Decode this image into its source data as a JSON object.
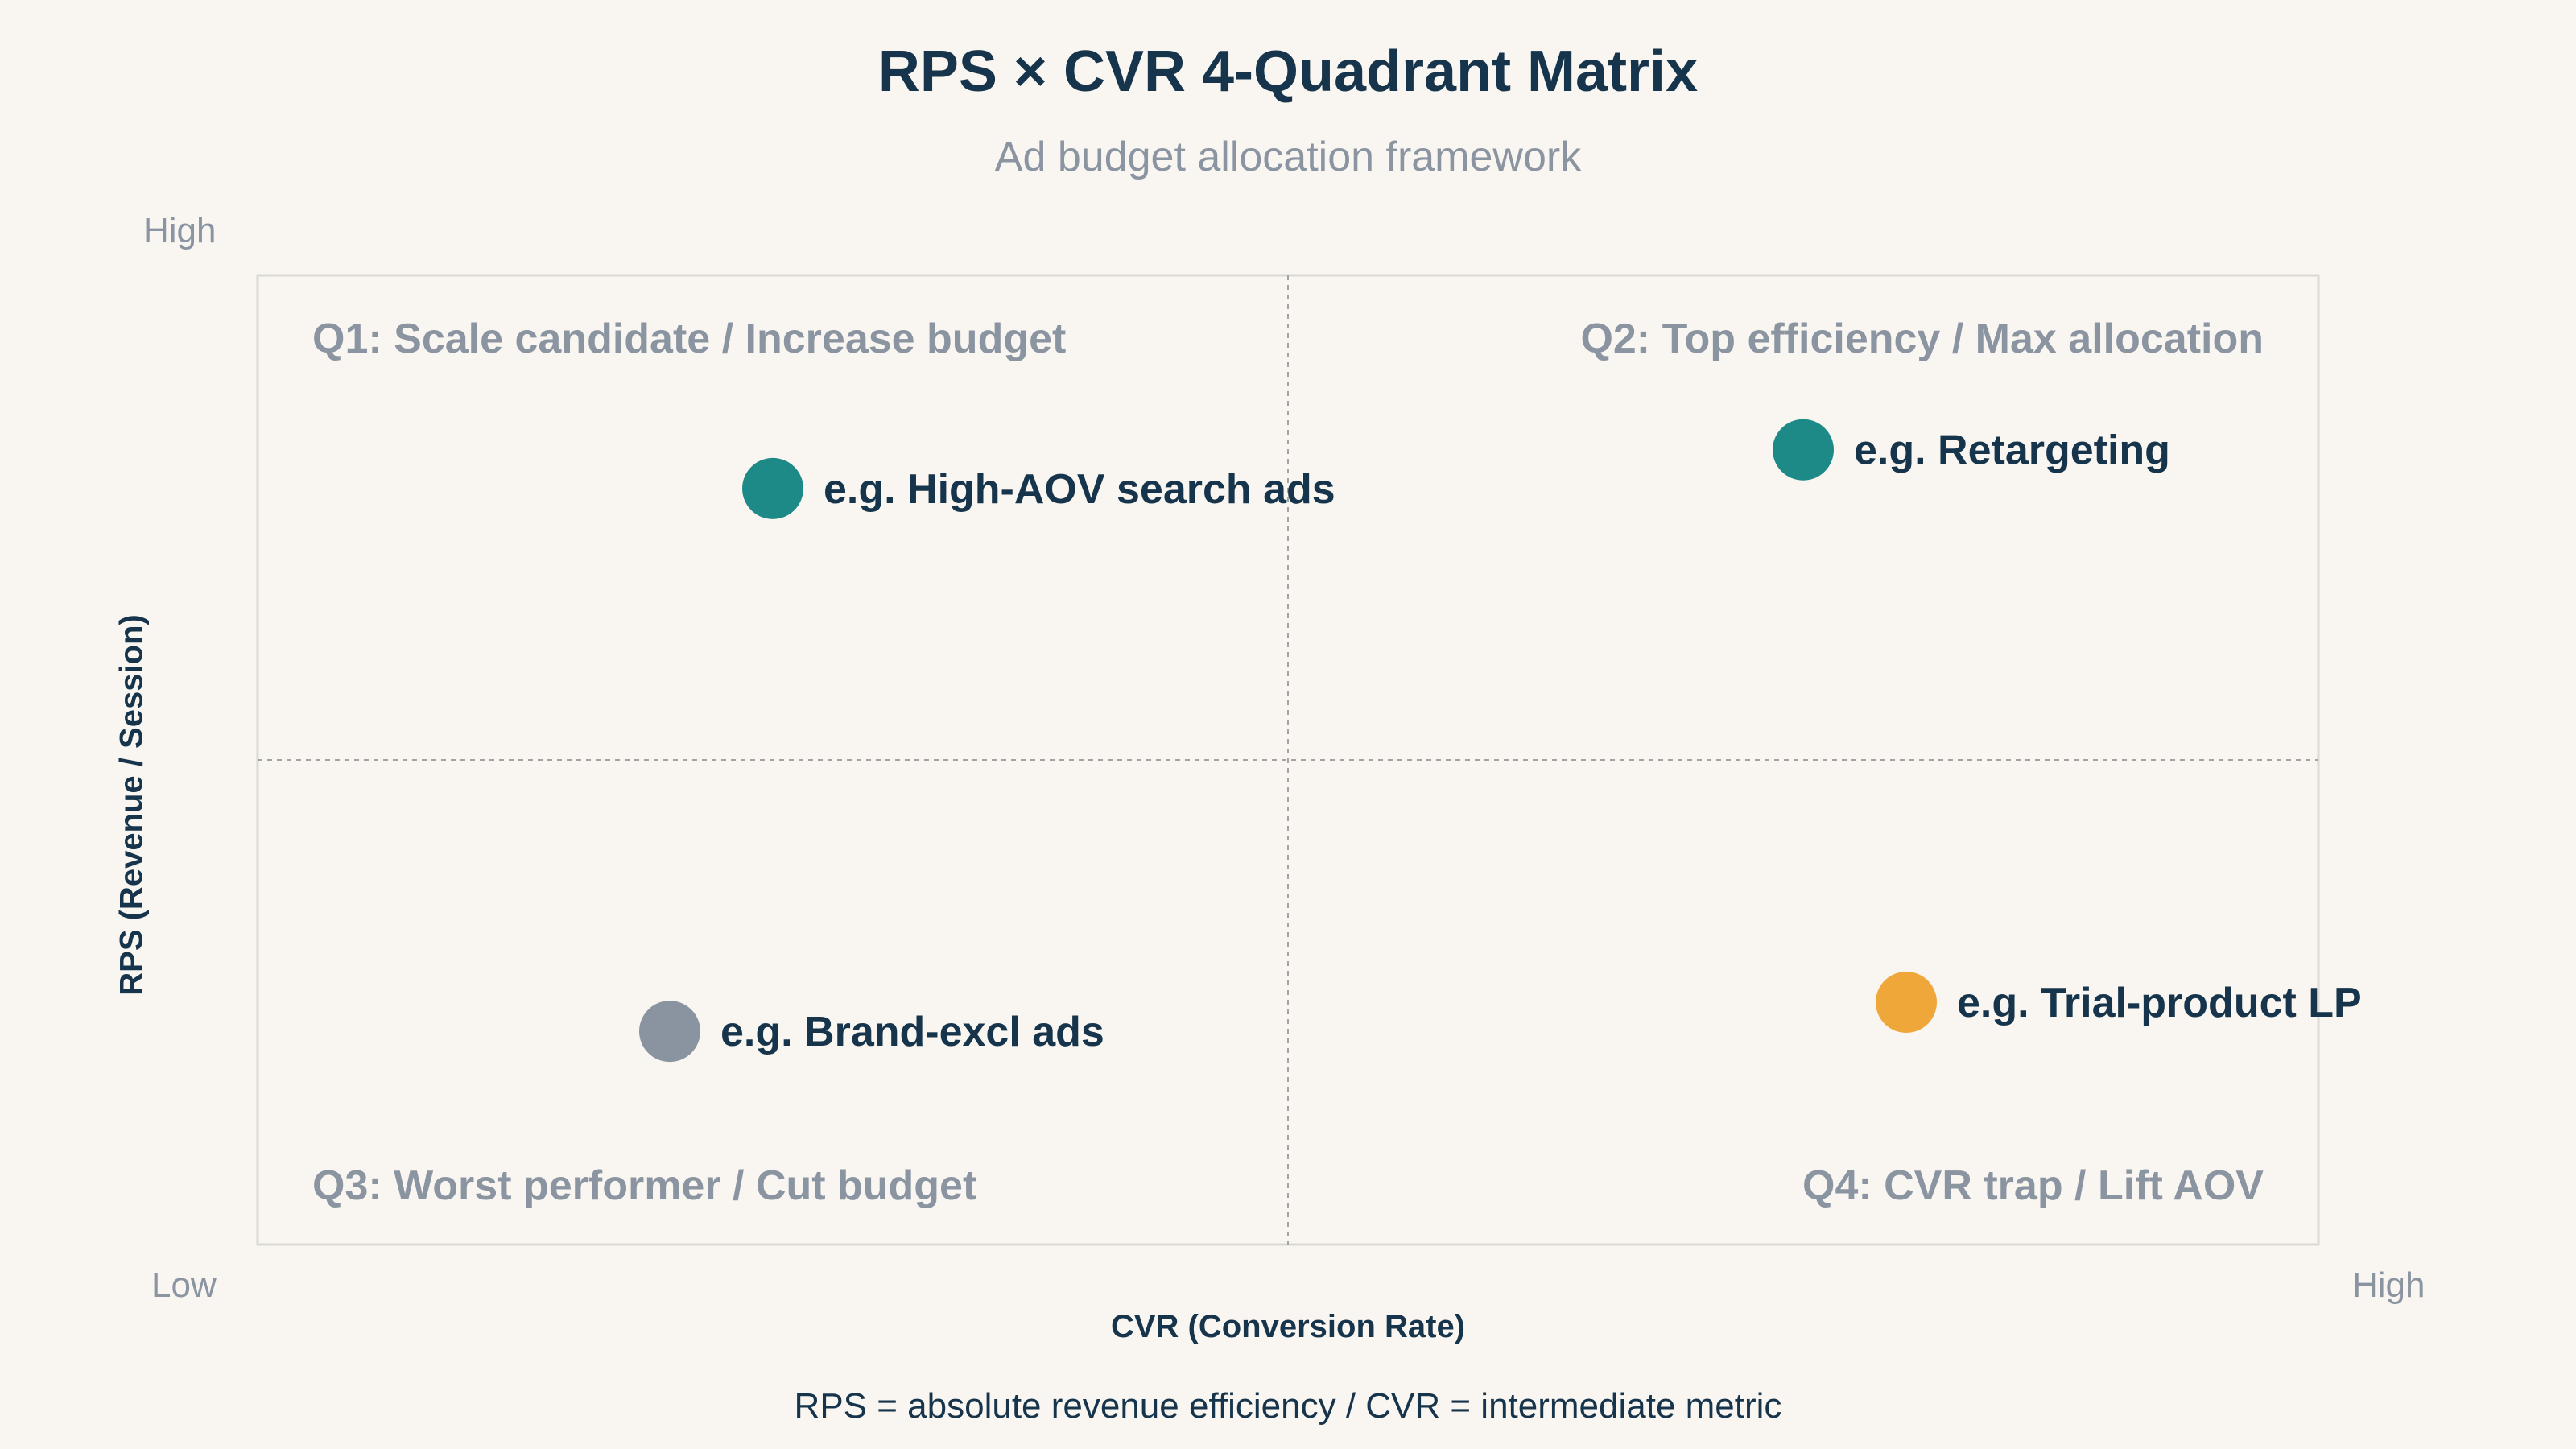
{
  "title": "RPS × CVR 4-Quadrant Matrix",
  "subtitle": "Ad budget allocation framework",
  "axes": {
    "y_high": "High",
    "y_low": "Low",
    "x_high": "High",
    "x_title": "CVR (Conversion Rate)",
    "y_title": "RPS (Revenue / Session)"
  },
  "footnote": "RPS = absolute revenue efficiency / CVR = intermediate metric",
  "chart_data": {
    "type": "scatter",
    "xlabel": "CVR (Conversion Rate)",
    "ylabel": "RPS (Revenue / Session)",
    "xlim": [
      0,
      1
    ],
    "ylim": [
      0,
      1
    ],
    "grid": false,
    "dividers": {
      "x": 0.5,
      "y": 0.5
    },
    "quadrants": [
      {
        "id": "q1",
        "label": "Q1: Scale candidate / Increase budget",
        "position": "top-left"
      },
      {
        "id": "q2",
        "label": "Q2: Top efficiency / Max allocation",
        "position": "top-right"
      },
      {
        "id": "q3",
        "label": "Q3: Worst performer / Cut budget",
        "position": "bottom-left"
      },
      {
        "id": "q4",
        "label": "Q4: CVR trap / Lift AOV",
        "position": "bottom-right"
      }
    ],
    "points": [
      {
        "label": "e.g. High-AOV search ads",
        "x": 0.25,
        "y": 0.78,
        "color": "#1e8a87"
      },
      {
        "label": "e.g. Retargeting",
        "x": 0.75,
        "y": 0.82,
        "color": "#1e8a87"
      },
      {
        "label": "e.g. Brand-excl ads",
        "x": 0.2,
        "y": 0.22,
        "color": "#8a93a0"
      },
      {
        "label": "e.g. Trial-product LP",
        "x": 0.8,
        "y": 0.25,
        "color": "#f0a73a"
      }
    ]
  },
  "colors": {
    "title": "#16344b",
    "muted": "#8b94a1",
    "frame": "#dcd9d4",
    "divider": "#a3a3a3",
    "background": "#f9f6f1"
  }
}
